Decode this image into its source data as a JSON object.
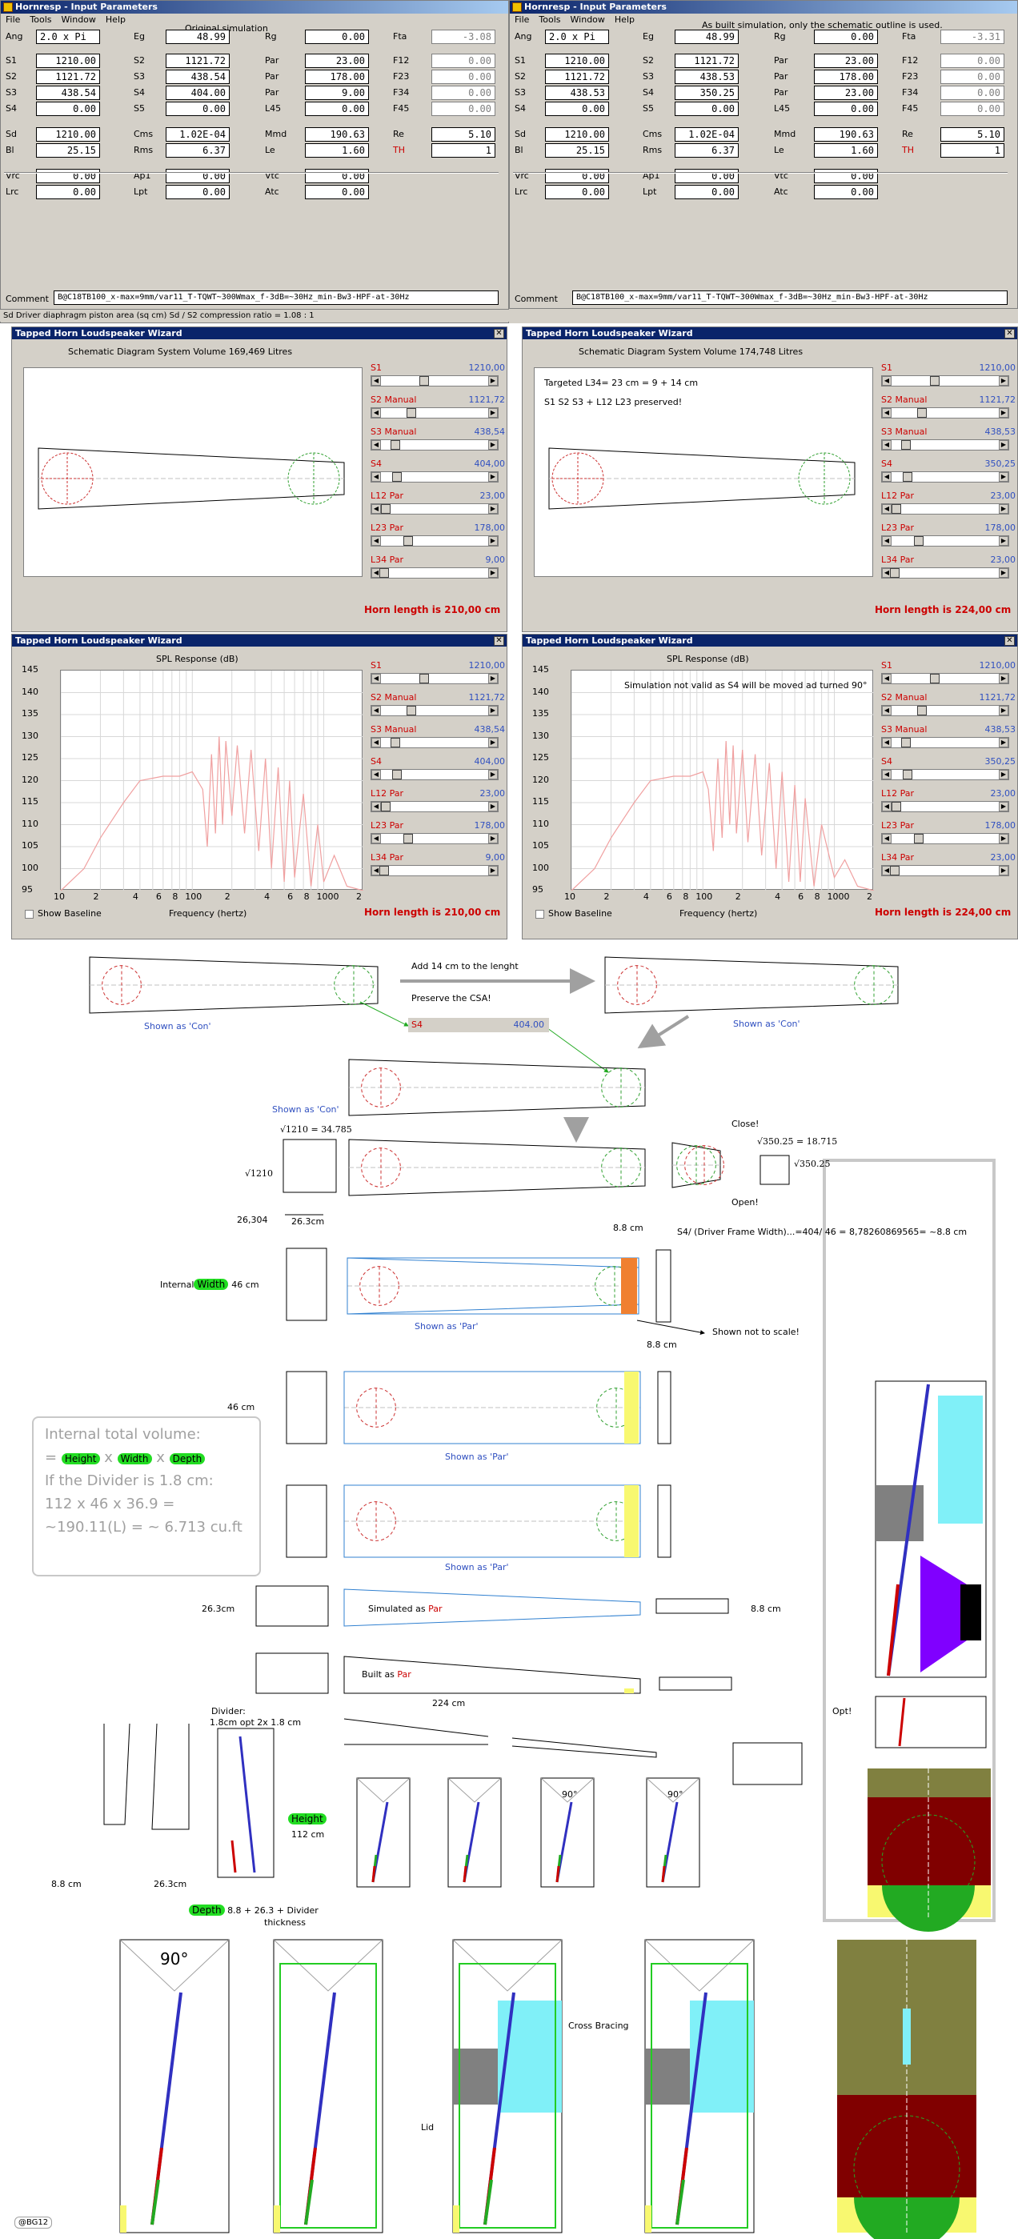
{
  "left_window": {
    "title": "Hornresp - Input Parameters",
    "menu": [
      "File",
      "Tools",
      "Window",
      "Help"
    ],
    "heading": "Original simulation",
    "params": {
      "Ang": "2.0 x Pi",
      "Eg": "48.99",
      "Rg": "0.00",
      "Fta": "-3.08",
      "S1": "1210.00",
      "S2": "1121.72",
      "S3": "438.54",
      "S4": "0.00",
      "S1b": "1121.72",
      "S2b": "438.54",
      "S3b": "404.00",
      "S5": "0.00",
      "Par1": "23.00",
      "Par2": "178.00",
      "Par3": "9.00",
      "L45": "0.00",
      "F12": "0.00",
      "F23": "0.00",
      "F34": "0.00",
      "F45": "0.00",
      "Sd": "1210.00",
      "Cms": "1.02E-04",
      "Mmd": "190.63",
      "Re": "5.10",
      "Bl": "25.15",
      "Rms": "6.37",
      "Le": "1.60",
      "TH": "1",
      "Vrc": "0.00",
      "Ap1": "0.00",
      "Vtc": "0.00",
      "Lrc": "0.00",
      "Lpt": "0.00",
      "Atc": "0.00"
    },
    "comment": "B@C18TB100_x-max=9mm/var11_T-TQWT~300Wmax_f-3dB=~30Hz_min-Bw3-HPF-at-30Hz"
  },
  "right_window": {
    "title": "Hornresp - Input Parameters",
    "menu": [
      "File",
      "Tools",
      "Window",
      "Help"
    ],
    "heading": "As built simulation, only the schematic outline is used.",
    "params": {
      "Ang": "2.0 x Pi",
      "Eg": "48.99",
      "Rg": "0.00",
      "Fta": "-3.31",
      "S1": "1210.00",
      "S2": "1121.72",
      "S3": "438.53",
      "S4": "0.00",
      "S1b": "1121.72",
      "S2b": "438.53",
      "S3b": "350.25",
      "S5": "0.00",
      "Par1": "23.00",
      "Par2": "178.00",
      "Par3": "23.00",
      "L45": "0.00",
      "F12": "0.00",
      "F23": "0.00",
      "F34": "0.00",
      "F45": "0.00",
      "Sd": "1210.00",
      "Cms": "1.02E-04",
      "Mmd": "190.63",
      "Re": "5.10",
      "Bl": "25.15",
      "Rms": "6.37",
      "Le": "1.60",
      "TH": "1",
      "Vrc": "0.00",
      "Ap1": "0.00",
      "Vtc": "0.00",
      "Lrc": "0.00",
      "Lpt": "0.00",
      "Atc": "0.00"
    },
    "comment": "B@C18TB100_x-max=9mm/var11_T-TQWT~300Wmax_f-3dB=~30Hz_min-Bw3-HPF-at-30Hz"
  },
  "status_bar": "Sd  Driver diaphragm piston area  (sq cm)   Sd / S2 compression ratio = 1.08 : 1",
  "labels": {
    "Ang": "Ang",
    "Eg": "Eg",
    "Rg": "Rg",
    "Fta": "Fta",
    "S1": "S1",
    "S2": "S2",
    "S3": "S3",
    "S4": "S4",
    "S5": "S5",
    "Par": "Par",
    "L45": "L45",
    "F12": "F12",
    "F23": "F23",
    "F34": "F34",
    "F45": "F45",
    "Sd": "Sd",
    "Cms": "Cms",
    "Mmd": "Mmd",
    "Re": "Re",
    "Bl": "Bl",
    "Rms": "Rms",
    "Le": "Le",
    "TH": "TH",
    "Vrc": "Vrc",
    "Ap1": "Ap1",
    "Vtc": "Vtc",
    "Lrc": "Lrc",
    "Lpt": "Lpt",
    "Atc": "Atc",
    "Comment": "Comment"
  },
  "wizard_title": "Tapped Horn Loudspeaker Wizard",
  "schem_left": {
    "title": "Schematic Diagram   System Volume 169,469 Litres",
    "sliders": [
      {
        "name": "S1",
        "value": "1210,00"
      },
      {
        "name": "S2 Manual",
        "value": "1121,72"
      },
      {
        "name": "S3 Manual",
        "value": "438,54"
      },
      {
        "name": "S4",
        "value": "404,00"
      },
      {
        "name": "L12 Par",
        "value": "23,00"
      },
      {
        "name": "L23 Par",
        "value": "178,00"
      },
      {
        "name": "L34 Par",
        "value": "9,00"
      }
    ],
    "horn_length": "Horn length is 210,00 cm"
  },
  "schem_right": {
    "title": "Schematic Diagram   System Volume 174,748 Litres",
    "note1": "Targeted L34= 23 cm = 9 + 14 cm",
    "note2": "S1 S2 S3 + L12 L23  preserved!",
    "sliders": [
      {
        "name": "S1",
        "value": "1210,00"
      },
      {
        "name": "S2 Manual",
        "value": "1121,72"
      },
      {
        "name": "S3 Manual",
        "value": "438,53"
      },
      {
        "name": "S4",
        "value": "350,25"
      },
      {
        "name": "L12 Par",
        "value": "23,00"
      },
      {
        "name": "L23 Par",
        "value": "178,00"
      },
      {
        "name": "L34 Par",
        "value": "23,00"
      }
    ],
    "horn_length": "Horn length is 224,00 cm"
  },
  "spl_left": {
    "title": "SPL Response (dB)",
    "show_baseline": "Show Baseline",
    "xlabel": "Frequency (hertz)",
    "sliders": [
      {
        "name": "S1",
        "value": "1210,00"
      },
      {
        "name": "S2 Manual",
        "value": "1121,72"
      },
      {
        "name": "S3 Manual",
        "value": "438,54"
      },
      {
        "name": "S4",
        "value": "404,00"
      },
      {
        "name": "L12 Par",
        "value": "23,00"
      },
      {
        "name": "L23 Par",
        "value": "178,00"
      },
      {
        "name": "L34 Par",
        "value": "9,00"
      }
    ],
    "horn_length": "Horn length is 210,00 cm"
  },
  "spl_right": {
    "title": "SPL Response (dB)",
    "note": "Simulation not valid as S4 will be moved ad turned 90°",
    "show_baseline": "Show Baseline",
    "xlabel": "Frequency (hertz)",
    "sliders": [
      {
        "name": "S1",
        "value": "1210,00"
      },
      {
        "name": "S2 Manual",
        "value": "1121,72"
      },
      {
        "name": "S3 Manual",
        "value": "438,53"
      },
      {
        "name": "S4",
        "value": "350,25"
      },
      {
        "name": "L12 Par",
        "value": "23,00"
      },
      {
        "name": "L23 Par",
        "value": "178,00"
      },
      {
        "name": "L34 Par",
        "value": "23,00"
      }
    ],
    "horn_length": "Horn length is 224,00 cm"
  },
  "chart_data": [
    {
      "type": "line",
      "title": "SPL Response (dB)",
      "xlabel": "Frequency (hertz)",
      "ylabel": "",
      "x_ticks": [
        "10",
        "2",
        "4",
        "6",
        "8",
        "100",
        "2",
        "4",
        "6",
        "8",
        "1000",
        "2"
      ],
      "y_ticks": [
        "145",
        "140",
        "135",
        "130",
        "125",
        "120",
        "115",
        "110",
        "105",
        "100",
        "95"
      ],
      "ylim": [
        95,
        145
      ],
      "xlim": [
        10,
        2000
      ],
      "xscale": "log",
      "series": [
        {
          "x": [
            10,
            15,
            20,
            30,
            40,
            60,
            80,
            100,
            120,
            130,
            140,
            150,
            160,
            170,
            180,
            200,
            220,
            250,
            280,
            320,
            360,
            400,
            450,
            500,
            550,
            600,
            700,
            800,
            900,
            1000,
            1200,
            1500,
            2000
          ],
          "y": [
            95,
            100,
            107,
            115,
            120,
            121,
            121,
            122,
            118,
            105,
            126,
            108,
            130,
            110,
            129,
            112,
            128,
            108,
            127,
            104,
            125,
            100,
            123,
            97,
            120,
            98,
            117,
            96,
            110,
            97,
            103,
            96,
            95
          ]
        }
      ]
    },
    {
      "type": "line",
      "title": "SPL Response (dB)",
      "xlabel": "Frequency (hertz)",
      "ylabel": "",
      "x_ticks": [
        "10",
        "2",
        "4",
        "6",
        "8",
        "100",
        "2",
        "4",
        "6",
        "8",
        "1000",
        "2"
      ],
      "y_ticks": [
        "145",
        "140",
        "135",
        "130",
        "125",
        "120",
        "115",
        "110",
        "105",
        "100",
        "95"
      ],
      "ylim": [
        95,
        145
      ],
      "xlim": [
        10,
        2000
      ],
      "xscale": "log",
      "series": [
        {
          "x": [
            10,
            15,
            20,
            30,
            40,
            60,
            80,
            100,
            110,
            120,
            130,
            140,
            150,
            160,
            170,
            180,
            200,
            220,
            250,
            280,
            320,
            360,
            400,
            450,
            500,
            550,
            600,
            700,
            800,
            1000,
            1200,
            1500,
            2000
          ],
          "y": [
            95,
            100,
            107,
            115,
            120,
            121,
            121,
            122,
            118,
            104,
            125,
            107,
            129,
            110,
            128,
            108,
            127,
            106,
            126,
            103,
            124,
            100,
            122,
            97,
            119,
            97,
            116,
            96,
            110,
            98,
            102,
            96,
            95
          ]
        }
      ]
    }
  ],
  "diagram_text": {
    "add14": "Add 14 cm to the lenght",
    "preserve": "Preserve the CSA!",
    "shown_con1": "Shown as 'Con'",
    "shown_con2": "Shown as 'Con'",
    "shown_con3": "Shown as 'Con'",
    "s4_label": "S4",
    "s4_value": "404.00",
    "sqrt1210": "√1210 = 34.785",
    "sqrt1210b": "√1210",
    "close": "Close!",
    "open": "Open!",
    "sqrt350": "√350.25 = 18.715",
    "sqrt350b": "√350.25",
    "dim26304": "26,304",
    "dim263cm": "26.3cm",
    "dim88cm": "8.8 cm",
    "s4formula": "S4/ (Driver Frame Width)...=404/ 46 = 8,78260869565= ~8.8 cm",
    "internal": "Internal",
    "width": "Width",
    "dim46": "46 cm",
    "shown_par1": "Shown as 'Par'",
    "not_to_scale": "Shown not to scale!",
    "dim88b": "8.8 cm",
    "dim46b": "46 cm",
    "shown_par2": "Shown as 'Par'",
    "shown_par3": "Shown as 'Par'",
    "vol_title": "Internal total volume:",
    "vol_eq": "=",
    "vol_height": "Height",
    "vol_x": "x",
    "vol_width": "Width",
    "vol_depth": "Depth",
    "vol_divider": "If the Divider is 1.8 cm:",
    "vol_calc": "112 x 46 x 36.9 =",
    "vol_result": "~190.11(L) = ~ 6.713 cu.ft",
    "dim263b": "26.3cm",
    "simulated_as": "Simulated as",
    "par": "Par",
    "dim88c": "8.8 cm",
    "built_as": "Built as",
    "par2": "Par",
    "dim224": "224 cm",
    "divider": "Divider:",
    "divider2": "1.8cm opt 2x 1.8 cm",
    "height_tag": "Height",
    "dim112": "112 cm",
    "dim88d": "8.8 cm",
    "dim263c": "26.3cm",
    "depth_tag": "Depth",
    "depth_text": "8.8 + 26.3 + Divider",
    "thickness": "thickness",
    "ang90a": "90°",
    "ang90b": "90°",
    "ang90c": "90°",
    "opt": "Opt!",
    "cross_bracing": "Cross Bracing",
    "lid": "Lid",
    "credit": "@BG12"
  },
  "colors": {
    "win_bg": "#d4d0c8",
    "title_blue": "#0a246a",
    "red": "#cc0000",
    "blue": "#3050c0",
    "green": "#22dd22",
    "olive": "#808040",
    "maroon": "#800000",
    "cyan": "#80f0f8",
    "purple": "#8000ff"
  }
}
